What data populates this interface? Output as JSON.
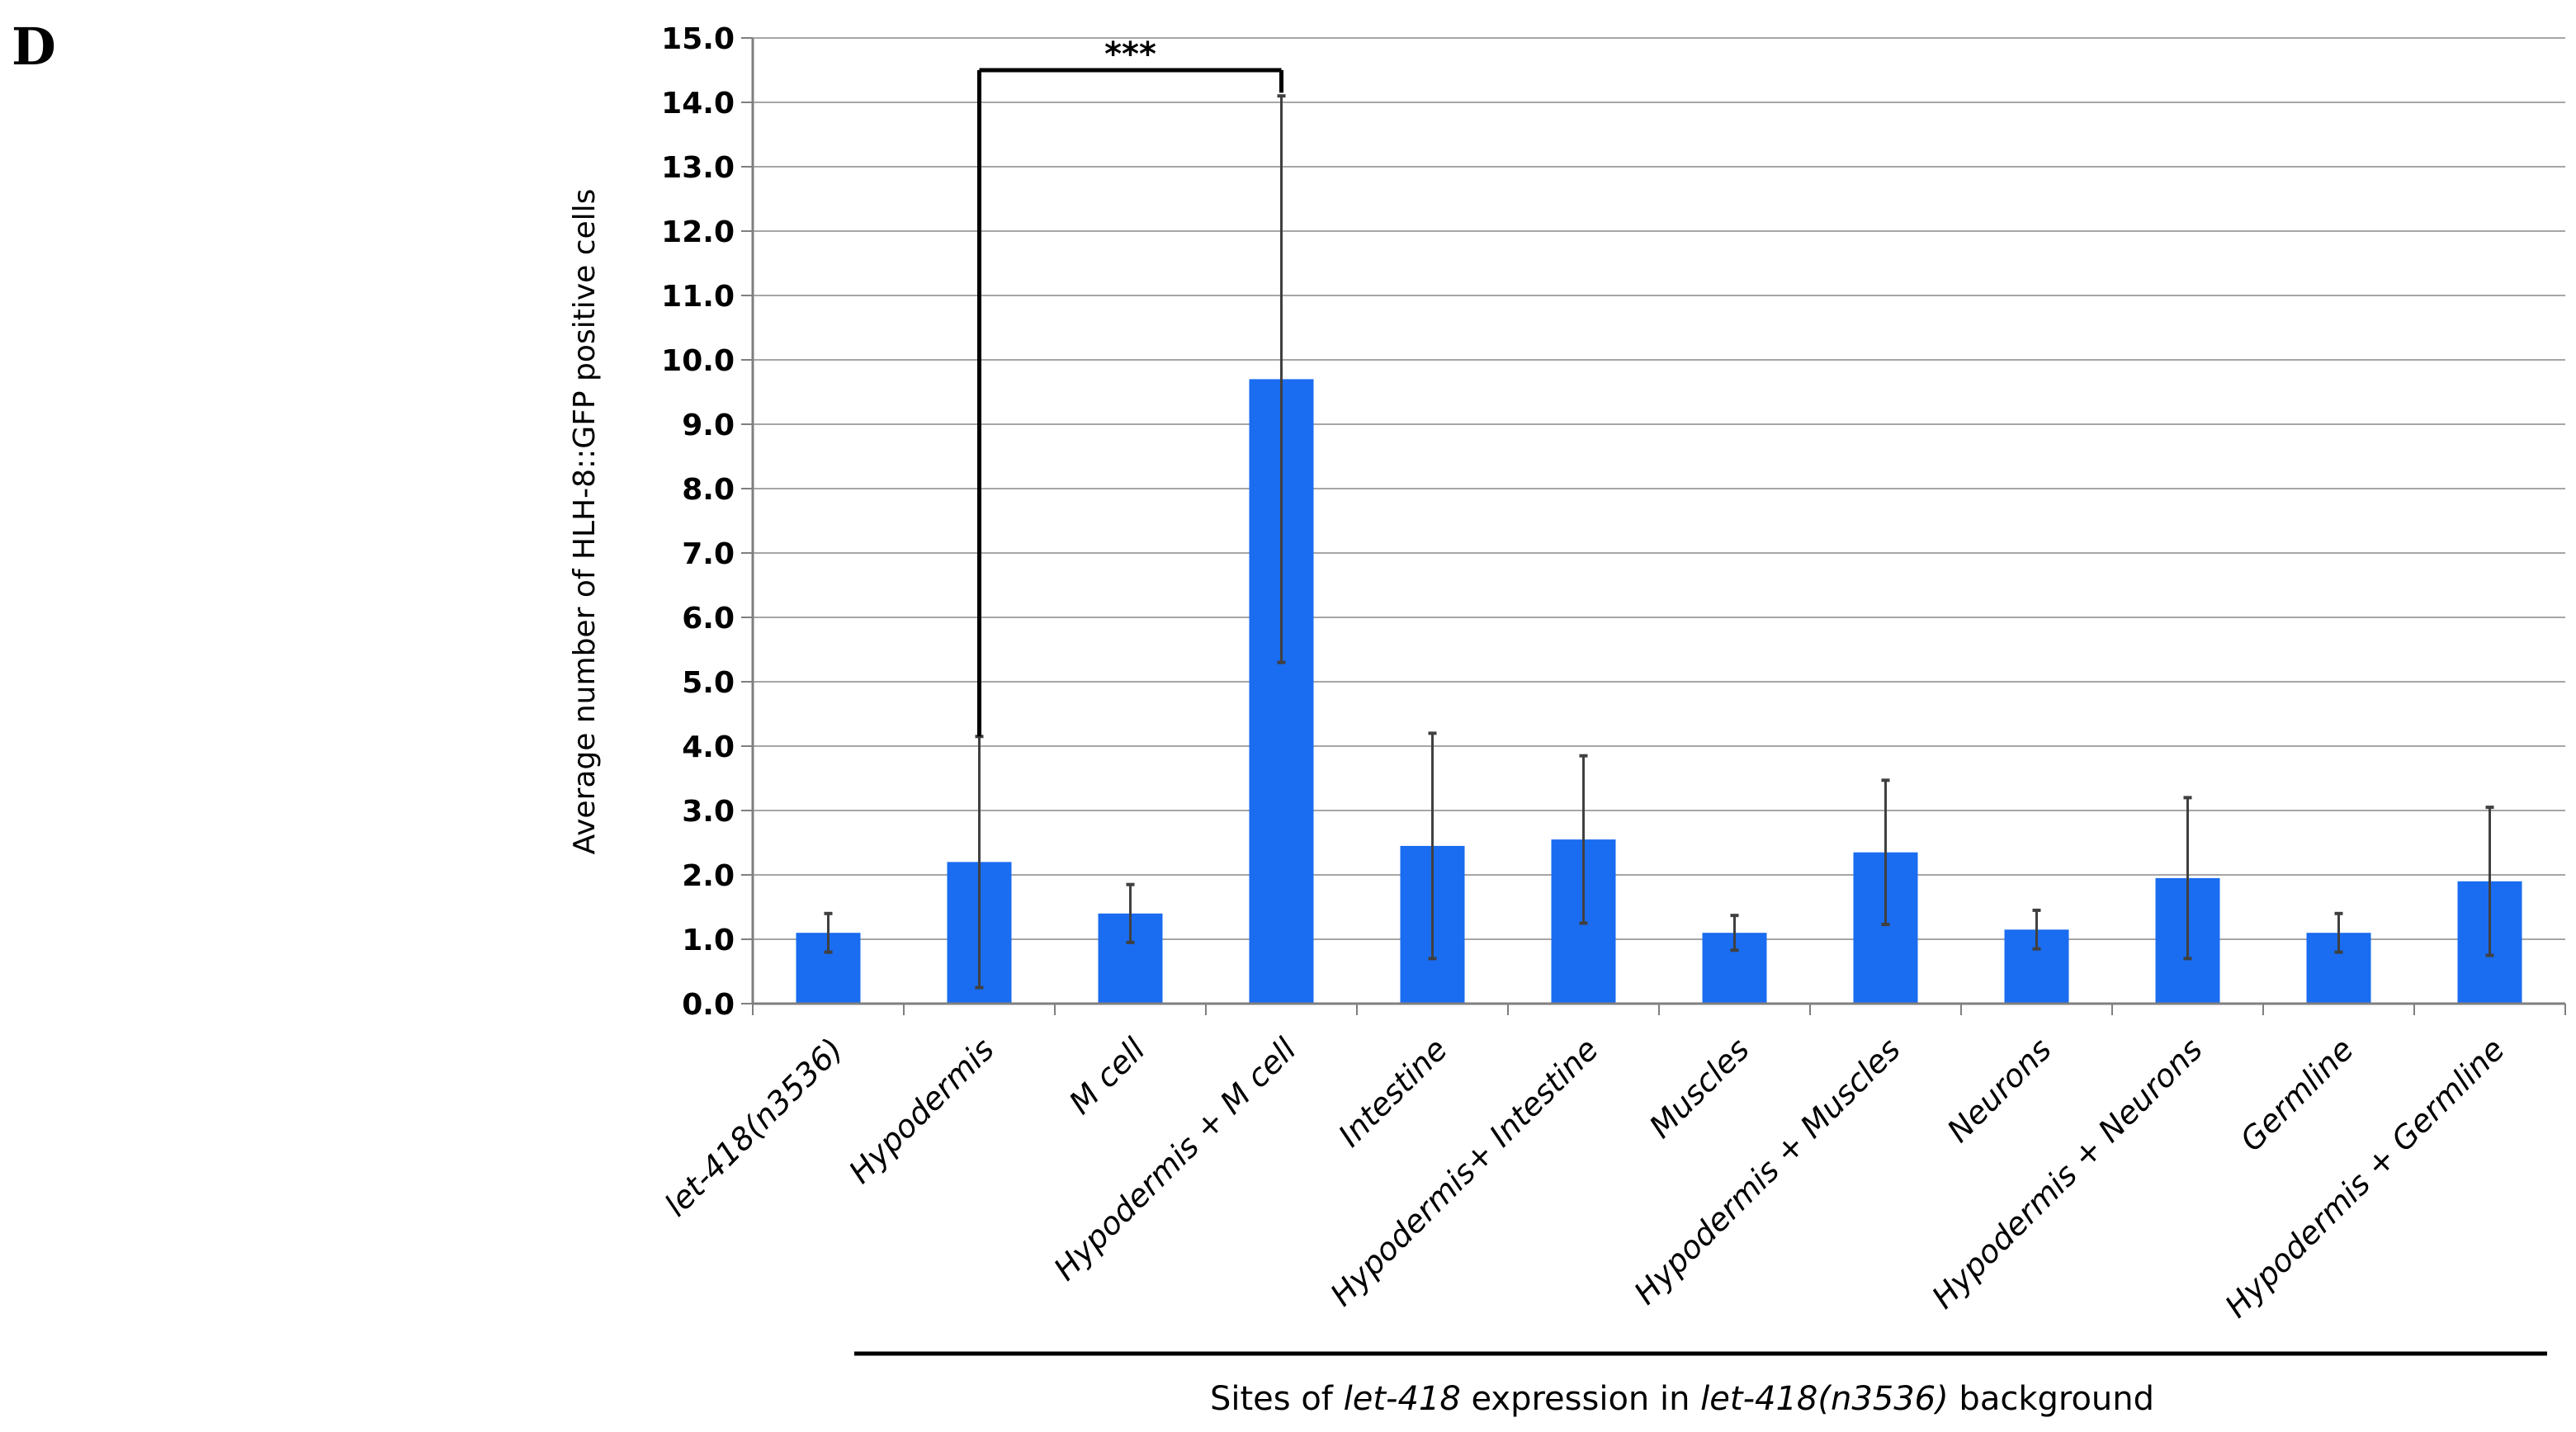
{
  "panel_label": "D",
  "colors": {
    "bar": "#1a6cf0",
    "grid": "#a6a6a6",
    "axis": "#7f7f7f",
    "error": "#404040",
    "text": "#000000"
  },
  "chart_data": {
    "type": "bar",
    "title": "",
    "ylabel": "Average number of HLH-8::GFP positive cells",
    "xlabel": {
      "prefix": "Sites of ",
      "italic1": "let-418",
      "middle": " expression in ",
      "italic2": "let-418(n3536)",
      "suffix": " background"
    },
    "ylim": [
      0,
      15
    ],
    "yticks": [
      "0.0",
      "1.0",
      "2.0",
      "3.0",
      "4.0",
      "5.0",
      "6.0",
      "7.0",
      "8.0",
      "9.0",
      "10.0",
      "11.0",
      "12.0",
      "13.0",
      "14.0",
      "15.0"
    ],
    "grid": true,
    "categories": [
      "let-418(n3536)",
      "Hypodermis",
      "M cell",
      "Hypodermis + M cell",
      "Intestine",
      "Hypodermis+ Intestine",
      "Muscles",
      "Hypodermis + Muscles",
      "Neurons",
      "Hypodermis + Neurons",
      "Germline",
      "Hypodermis + Germline"
    ],
    "values": [
      1.1,
      2.2,
      1.4,
      9.7,
      2.45,
      2.55,
      1.1,
      2.35,
      1.15,
      1.95,
      1.1,
      1.9
    ],
    "error": [
      0.3,
      1.95,
      0.45,
      4.4,
      1.75,
      1.3,
      0.27,
      1.12,
      0.3,
      1.25,
      0.3,
      1.15
    ],
    "significance": {
      "from": 1,
      "to": 3,
      "label": "***",
      "y": 14.5
    }
  }
}
